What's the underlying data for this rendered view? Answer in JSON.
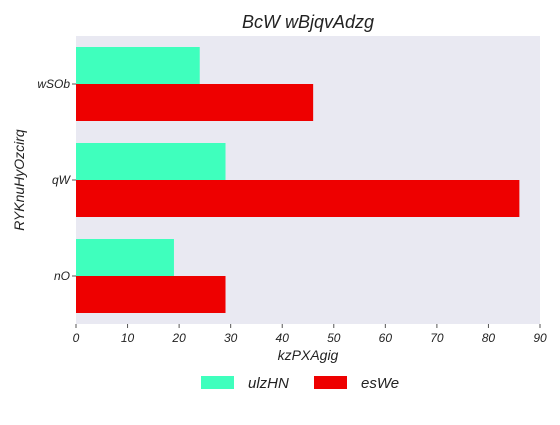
{
  "chart_data": {
    "type": "bar",
    "orientation": "horizontal",
    "title": "BcW wBjqvAdzg",
    "xlabel": "kzPXAgig",
    "ylabel": "RYKnuHyOzcirq",
    "categories": [
      "wSOb",
      "qW",
      "nO"
    ],
    "series": [
      {
        "name": "ulzHN",
        "color": "#3fffbd",
        "values": [
          24,
          29,
          19
        ]
      },
      {
        "name": "esWe",
        "color": "#ee0000",
        "values": [
          46,
          86,
          29
        ]
      }
    ],
    "xlim": [
      0,
      90
    ],
    "xticks": [
      0,
      10,
      20,
      30,
      40,
      50,
      60,
      70,
      80,
      90
    ],
    "grid": false,
    "background": "#e9e9f2",
    "legend": "bottom-center"
  }
}
